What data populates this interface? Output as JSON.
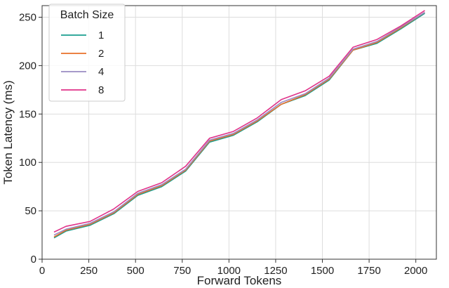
{
  "chart_data": {
    "type": "line",
    "xlabel": "Forward Tokens",
    "ylabel": "Token Latency (ms)",
    "xlim": [
      0,
      2110
    ],
    "ylim": [
      0,
      262
    ],
    "xticks": [
      0,
      250,
      500,
      750,
      1000,
      1250,
      1500,
      1750,
      2000
    ],
    "yticks": [
      0,
      50,
      100,
      150,
      200,
      250
    ],
    "grid": true,
    "legend": {
      "title": "Batch Size",
      "placement": "top-left"
    },
    "x": [
      64,
      128,
      256,
      384,
      512,
      640,
      768,
      896,
      1024,
      1152,
      1280,
      1408,
      1536,
      1664,
      1792,
      1920,
      2048
    ],
    "series": [
      {
        "name": "1",
        "color": "#1a9e8f",
        "values": [
          22,
          29,
          35,
          47,
          66,
          75,
          91,
          121,
          128,
          142,
          160,
          169,
          185,
          216,
          223,
          238,
          254
        ]
      },
      {
        "name": "2",
        "color": "#e8702a",
        "values": [
          23,
          30,
          36,
          48,
          67,
          76,
          92,
          122,
          129,
          143,
          160,
          170,
          186,
          216,
          224,
          239,
          255
        ]
      },
      {
        "name": "4",
        "color": "#9a8cc2",
        "values": [
          25,
          31,
          37,
          49,
          68,
          77,
          93,
          123,
          130,
          144,
          162,
          171,
          187,
          217,
          225,
          240,
          255
        ]
      },
      {
        "name": "8",
        "color": "#e0338a",
        "values": [
          28,
          34,
          39,
          52,
          70,
          79,
          96,
          125,
          132,
          146,
          165,
          174,
          189,
          219,
          227,
          241,
          257
        ]
      }
    ]
  }
}
